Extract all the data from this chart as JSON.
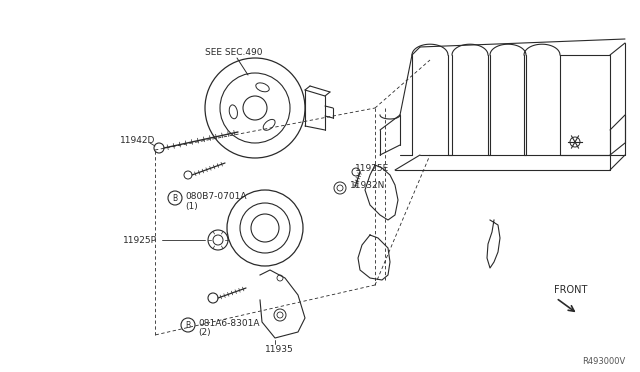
{
  "bg_color": "#ffffff",
  "fig_width": 6.4,
  "fig_height": 3.72,
  "dpi": 100,
  "labels": {
    "see_sec": "SEE SEC.490",
    "part1": "080B7-0701A",
    "part1_num": "(1)",
    "part2": "081A6-8301A",
    "part2_num": "(2)",
    "id_11942D": "11942D",
    "id_11925E": "11925E",
    "id_11932N": "11932N",
    "id_11925P": "11925P",
    "id_11935": "11935",
    "front": "FRONT",
    "diagram_ref": "R493000V"
  },
  "line_color": "#2a2a2a",
  "text_color": "#2a2a2a"
}
